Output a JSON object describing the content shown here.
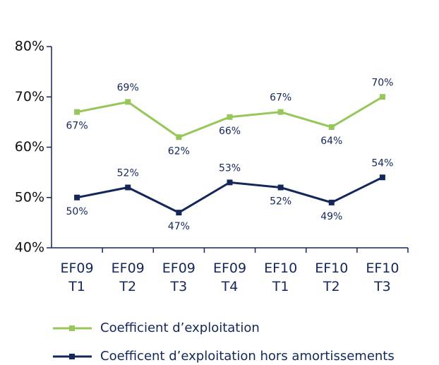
{
  "chart_data": {
    "type": "line",
    "categories": [
      "EF09 T1",
      "EF09 T2",
      "EF09 T3",
      "EF09 T4",
      "EF10 T1",
      "EF10 T2",
      "EF10 T3"
    ],
    "series": [
      {
        "name": "Coefficient d’exploitation",
        "color": "#97c65b",
        "values": [
          67,
          69,
          62,
          66,
          67,
          64,
          70
        ],
        "value_labels": [
          "67%",
          "69%",
          "62%",
          "66%",
          "67%",
          "64%",
          "70%"
        ]
      },
      {
        "name": "Coefficent d’exploitation hors amortissements",
        "color": "#13275a",
        "values": [
          50,
          52,
          47,
          53,
          52,
          49,
          54
        ],
        "value_labels": [
          "50%",
          "52%",
          "47%",
          "53%",
          "52%",
          "49%",
          "54%"
        ]
      }
    ],
    "ylim": [
      40,
      80
    ],
    "yticks": [
      {
        "value": 40,
        "label": "40%"
      },
      {
        "value": 50,
        "label": "50%"
      },
      {
        "value": 60,
        "label": "60%"
      },
      {
        "value": 70,
        "label": "70%"
      },
      {
        "value": 80,
        "label": "80%"
      }
    ],
    "grid": false
  }
}
